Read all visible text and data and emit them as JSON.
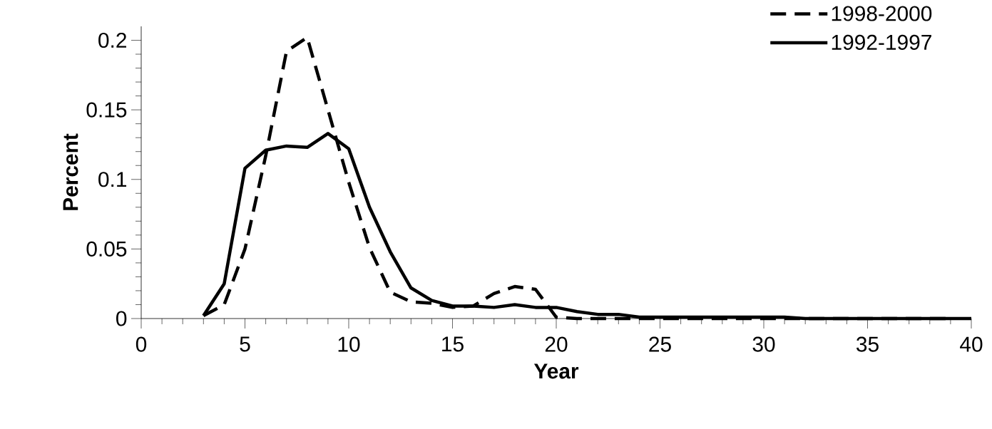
{
  "chart_data": {
    "type": "line",
    "xlabel": "Year",
    "ylabel": "Percent",
    "xlim": [
      0,
      40
    ],
    "ylim": [
      0,
      0.21
    ],
    "xticks": [
      0,
      5,
      10,
      15,
      20,
      25,
      30,
      35,
      40
    ],
    "yticks": [
      0,
      0.05,
      0.1,
      0.15,
      0.2
    ],
    "legend": "top right",
    "grid": false,
    "marker": "none",
    "series": [
      {
        "name": "1998-2000",
        "color": "#000000",
        "line_style": "dashed",
        "x": [
          3,
          4,
          5,
          6,
          7,
          8,
          9,
          10,
          11,
          12,
          13,
          14,
          15,
          16,
          17,
          18,
          19,
          20,
          21,
          22,
          23,
          24,
          25,
          26,
          27,
          28,
          29,
          30,
          31,
          32,
          33,
          34,
          35,
          36,
          37,
          38,
          39
        ],
        "values": [
          0.002,
          0.01,
          0.05,
          0.117,
          0.192,
          0.202,
          0.15,
          0.098,
          0.051,
          0.019,
          0.012,
          0.011,
          0.008,
          0.009,
          0.018,
          0.023,
          0.021,
          0.001,
          0,
          0,
          0,
          0,
          0,
          0,
          0,
          0,
          0,
          0,
          0,
          0,
          0,
          0,
          0,
          0,
          0,
          0,
          0
        ]
      },
      {
        "name": "1992-1997",
        "color": "#000000",
        "line_style": "solid",
        "x": [
          3,
          4,
          5,
          6,
          7,
          8,
          9,
          10,
          11,
          12,
          13,
          14,
          15,
          16,
          17,
          18,
          19,
          20,
          21,
          22,
          23,
          24,
          25,
          26,
          27,
          28,
          29,
          30,
          31,
          32,
          33,
          34,
          35,
          36,
          37,
          38,
          39,
          40
        ],
        "values": [
          0.002,
          0.025,
          0.108,
          0.121,
          0.124,
          0.123,
          0.133,
          0.122,
          0.08,
          0.048,
          0.022,
          0.013,
          0.009,
          0.009,
          0.008,
          0.01,
          0.008,
          0.008,
          0.005,
          0.003,
          0.003,
          0.001,
          0.001,
          0.001,
          0.001,
          0.001,
          0.001,
          0.001,
          0.001,
          0,
          0,
          0,
          0,
          0,
          0,
          0,
          0,
          0
        ]
      }
    ]
  }
}
